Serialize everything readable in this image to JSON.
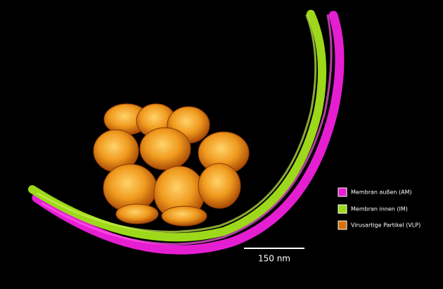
{
  "legend": {
    "items": [
      {
        "label": "Membran außen  (AM)",
        "color": "#e61ed2"
      },
      {
        "label": "Membran innen (IM)",
        "color": "#9ed81a"
      },
      {
        "label": "Virusartige Partikel (VLP)",
        "color": "#d9700a"
      }
    ]
  },
  "scale_bar": {
    "label": "150 nm"
  }
}
